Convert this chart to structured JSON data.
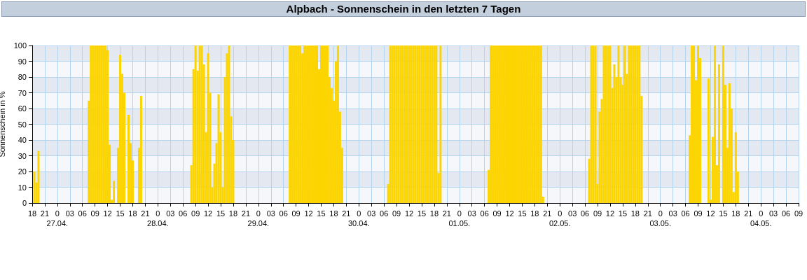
{
  "chart_data": {
    "type": "bar",
    "title": "Alpbach - Sonnenschein in den letzten 7 Tagen",
    "ylabel": "Sonnenschein in %",
    "x": [
      "--04-26T18:30",
      "--04-26T19:00",
      "--04-26T19:30",
      "--04-27T07:30",
      "--04-27T08:00",
      "--04-27T08:30",
      "--04-27T09:00",
      "--04-27T09:30",
      "--04-27T10:00",
      "--04-27T10:30",
      "--04-27T11:00",
      "--04-27T11:30",
      "--04-27T12:00",
      "--04-27T12:30",
      "--04-27T13:00",
      "--04-27T13:30",
      "--04-27T14:30",
      "--04-27T15:00",
      "--04-27T15:30",
      "--04-27T16:00",
      "--04-27T17:00",
      "--04-27T17:30",
      "--04-27T18:00",
      "--04-27T19:30",
      "--04-27T20:00",
      "--04-28T08:00",
      "--04-28T08:30",
      "--04-28T09:00",
      "--04-28T09:30",
      "--04-28T10:00",
      "--04-28T10:30",
      "--04-28T11:00",
      "--04-28T11:30",
      "--04-28T12:00",
      "--04-28T12:30",
      "--04-28T13:00",
      "--04-28T13:30",
      "--04-28T14:00",
      "--04-28T14:30",
      "--04-28T15:00",
      "--04-28T15:30",
      "--04-28T16:00",
      "--04-28T16:30",
      "--04-28T17:00",
      "--04-28T17:30",
      "--04-28T18:00",
      "--04-29T07:30",
      "--04-29T08:00",
      "--04-29T08:30",
      "--04-29T09:00",
      "--04-29T09:30",
      "--04-29T10:00",
      "--04-29T10:30",
      "--04-29T11:00",
      "--04-29T11:30",
      "--04-29T12:00",
      "--04-29T12:30",
      "--04-29T13:00",
      "--04-29T13:30",
      "--04-29T14:00",
      "--04-29T14:30",
      "--04-29T15:00",
      "--04-29T15:30",
      "--04-29T16:00",
      "--04-29T16:30",
      "--04-29T17:00",
      "--04-29T17:30",
      "--04-29T18:00",
      "--04-29T18:30",
      "--04-29T19:00",
      "--04-29T19:30",
      "--04-29T20:00",
      "--04-30T07:00",
      "--04-30T07:30",
      "--04-30T08:00",
      "--04-30T08:30",
      "--04-30T09:00",
      "--04-30T09:30",
      "--04-30T10:00",
      "--04-30T10:30",
      "--04-30T11:00",
      "--04-30T11:30",
      "--04-30T12:00",
      "--04-30T12:30",
      "--04-30T13:00",
      "--04-30T13:30",
      "--04-30T14:00",
      "--04-30T14:30",
      "--04-30T15:00",
      "--04-30T15:30",
      "--04-30T16:00",
      "--04-30T16:30",
      "--04-30T17:00",
      "--04-30T17:30",
      "--04-30T18:00",
      "--04-30T18:30",
      "--04-30T19:00",
      "--04-30T19:30",
      "--05-01T07:00",
      "--05-01T07:30",
      "--05-01T08:00",
      "--05-01T08:30",
      "--05-01T09:00",
      "--05-01T09:30",
      "--05-01T10:00",
      "--05-01T10:30",
      "--05-01T11:00",
      "--05-01T11:30",
      "--05-01T12:00",
      "--05-01T12:30",
      "--05-01T13:00",
      "--05-01T13:30",
      "--05-01T14:00",
      "--05-01T14:30",
      "--05-01T15:00",
      "--05-01T15:30",
      "--05-01T16:00",
      "--05-01T16:30",
      "--05-01T17:00",
      "--05-01T17:30",
      "--05-01T18:00",
      "--05-01T18:30",
      "--05-01T19:00",
      "--05-01T19:30",
      "--05-01T20:00",
      "--05-02T07:00",
      "--05-02T07:30",
      "--05-02T08:00",
      "--05-02T08:30",
      "--05-02T09:00",
      "--05-02T09:30",
      "--05-02T10:00",
      "--05-02T10:30",
      "--05-02T11:00",
      "--05-02T11:30",
      "--05-02T12:00",
      "--05-02T12:30",
      "--05-02T13:00",
      "--05-02T13:30",
      "--05-02T14:00",
      "--05-02T14:30",
      "--05-02T15:00",
      "--05-02T15:30",
      "--05-02T16:00",
      "--05-02T16:30",
      "--05-02T17:00",
      "--05-02T17:30",
      "--05-02T18:00",
      "--05-02T18:30",
      "--05-02T19:00",
      "--05-02T19:30",
      "--05-03T07:00",
      "--05-03T07:30",
      "--05-03T08:00",
      "--05-03T08:30",
      "--05-03T09:00",
      "--05-03T09:30",
      "--05-03T11:30",
      "--05-03T12:00",
      "--05-03T12:30",
      "--05-03T13:00",
      "--05-03T13:30",
      "--05-03T14:00",
      "--05-03T15:00",
      "--05-03T15:30",
      "--05-03T16:00",
      "--05-03T16:30",
      "--05-03T17:00",
      "--05-03T17:30",
      "--05-03T18:00",
      "--05-03T18:30"
    ],
    "values": [
      20,
      13,
      33,
      65,
      100,
      100,
      100,
      100,
      100,
      100,
      100,
      100,
      97,
      37,
      2,
      14,
      35,
      94,
      82,
      70,
      56,
      38,
      27,
      35,
      68,
      24,
      85,
      100,
      84,
      100,
      100,
      88,
      45,
      95,
      70,
      10,
      25,
      38,
      69,
      45,
      10,
      80,
      95,
      100,
      55,
      40,
      100,
      100,
      100,
      100,
      100,
      100,
      95,
      100,
      100,
      100,
      100,
      100,
      100,
      100,
      85,
      100,
      100,
      100,
      100,
      80,
      73,
      65,
      90,
      100,
      58,
      35,
      12,
      100,
      100,
      100,
      100,
      100,
      100,
      100,
      100,
      100,
      100,
      100,
      100,
      100,
      100,
      100,
      100,
      100,
      100,
      100,
      100,
      100,
      100,
      100,
      19,
      100,
      21,
      100,
      100,
      100,
      100,
      100,
      100,
      100,
      100,
      100,
      100,
      100,
      100,
      100,
      100,
      100,
      100,
      100,
      100,
      100,
      100,
      100,
      100,
      100,
      100,
      100,
      4,
      28,
      100,
      100,
      100,
      12,
      58,
      66,
      100,
      100,
      100,
      100,
      73,
      88,
      80,
      100,
      80,
      75,
      100,
      82,
      100,
      100,
      100,
      100,
      100,
      100,
      68,
      43,
      100,
      100,
      78,
      100,
      92,
      79,
      2,
      42,
      100,
      24,
      88,
      100,
      75,
      35,
      76,
      60,
      7,
      45,
      20
    ],
    "color": "#fcd400",
    "xlim": [
      "--04-26T18:00",
      "--05-04T09:00"
    ],
    "xticks": [
      {
        "value": "--04-26T18:00",
        "label": "18"
      },
      {
        "value": "--04-26T21:00",
        "label": "21"
      },
      {
        "value": "--04-27T00:00",
        "label": "0\n27.04."
      },
      {
        "value": "--04-27T03:00",
        "label": "03"
      },
      {
        "value": "--04-27T06:00",
        "label": "06"
      },
      {
        "value": "--04-27T09:00",
        "label": "09"
      },
      {
        "value": "--04-27T12:00",
        "label": "12"
      },
      {
        "value": "--04-27T15:00",
        "label": "15"
      },
      {
        "value": "--04-27T18:00",
        "label": "18"
      },
      {
        "value": "--04-27T21:00",
        "label": "21"
      },
      {
        "value": "--04-28T00:00",
        "label": "0\n28.04."
      },
      {
        "value": "--04-28T03:00",
        "label": "03"
      },
      {
        "value": "--04-28T06:00",
        "label": "06"
      },
      {
        "value": "--04-28T09:00",
        "label": "09"
      },
      {
        "value": "--04-28T12:00",
        "label": "12"
      },
      {
        "value": "--04-28T15:00",
        "label": "15"
      },
      {
        "value": "--04-28T18:00",
        "label": "18"
      },
      {
        "value": "--04-28T21:00",
        "label": "21"
      },
      {
        "value": "--04-29T00:00",
        "label": "0\n29.04."
      },
      {
        "value": "--04-29T03:00",
        "label": "03"
      },
      {
        "value": "--04-29T06:00",
        "label": "06"
      },
      {
        "value": "--04-29T09:00",
        "label": "09"
      },
      {
        "value": "--04-29T12:00",
        "label": "12"
      },
      {
        "value": "--04-29T15:00",
        "label": "15"
      },
      {
        "value": "--04-29T18:00",
        "label": "18"
      },
      {
        "value": "--04-29T21:00",
        "label": "21"
      },
      {
        "value": "--04-30T00:00",
        "label": "0\n30.04."
      },
      {
        "value": "--04-30T03:00",
        "label": "03"
      },
      {
        "value": "--04-30T06:00",
        "label": "06"
      },
      {
        "value": "--04-30T09:00",
        "label": "09"
      },
      {
        "value": "--04-30T12:00",
        "label": "12"
      },
      {
        "value": "--04-30T15:00",
        "label": "15"
      },
      {
        "value": "--04-30T18:00",
        "label": "18"
      },
      {
        "value": "--04-30T21:00",
        "label": "21"
      },
      {
        "value": "--05-01T00:00",
        "label": "0\n01.05."
      },
      {
        "value": "--05-01T03:00",
        "label": "03"
      },
      {
        "value": "--05-01T06:00",
        "label": "06"
      },
      {
        "value": "--05-01T09:00",
        "label": "09"
      },
      {
        "value": "--05-01T12:00",
        "label": "12"
      },
      {
        "value": "--05-01T15:00",
        "label": "15"
      },
      {
        "value": "--05-01T18:00",
        "label": "18"
      },
      {
        "value": "--05-01T21:00",
        "label": "21"
      },
      {
        "value": "--05-02T00:00",
        "label": "0\n02.05."
      },
      {
        "value": "--05-02T03:00",
        "label": "03"
      },
      {
        "value": "--05-02T06:00",
        "label": "06"
      },
      {
        "value": "--05-02T09:00",
        "label": "09"
      },
      {
        "value": "--05-02T12:00",
        "label": "12"
      },
      {
        "value": "--05-02T15:00",
        "label": "15"
      },
      {
        "value": "--05-02T18:00",
        "label": "18"
      },
      {
        "value": "--05-02T21:00",
        "label": "21"
      },
      {
        "value": "--05-03T00:00",
        "label": "0\n03.05."
      },
      {
        "value": "--05-03T03:00",
        "label": "03"
      },
      {
        "value": "--05-03T06:00",
        "label": "06"
      },
      {
        "value": "--05-03T09:00",
        "label": "09"
      },
      {
        "value": "--05-03T12:00",
        "label": "12"
      },
      {
        "value": "--05-03T15:00",
        "label": "15"
      },
      {
        "value": "--05-03T18:00",
        "label": "18"
      },
      {
        "value": "--05-03T21:00",
        "label": "21"
      },
      {
        "value": "--05-04T00:00",
        "label": "0\n04.05."
      },
      {
        "value": "--05-04T03:00",
        "label": "03"
      },
      {
        "value": "--05-04T06:00",
        "label": "06"
      },
      {
        "value": "--05-04T09:00",
        "label": "09"
      }
    ],
    "ylim": [
      0,
      100
    ],
    "yticks": [
      0,
      10,
      20,
      30,
      40,
      50,
      60,
      70,
      80,
      90,
      100
    ],
    "grid": true
  }
}
